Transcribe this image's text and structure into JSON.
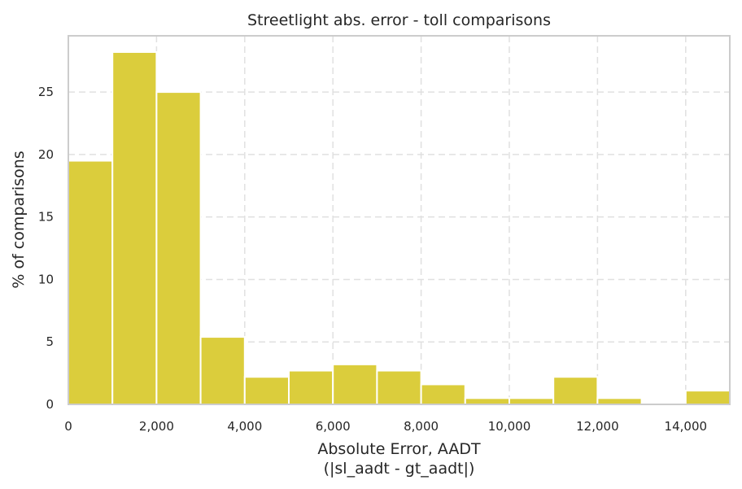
{
  "chart_data": {
    "type": "bar",
    "subtype": "histogram",
    "title": "Streetlight abs. error - toll comparisons",
    "xlabel": "Absolute Error, AADT",
    "xlabel_line2": "(|sl_aadt - gt_aadt|)",
    "ylabel": "% of comparisons",
    "bin_width": 1000,
    "bin_starts": [
      0,
      1000,
      2000,
      3000,
      4000,
      5000,
      6000,
      7000,
      8000,
      9000,
      10000,
      11000,
      12000,
      13000,
      14000
    ],
    "values": [
      19.5,
      28.2,
      25.0,
      5.4,
      2.2,
      2.7,
      3.2,
      2.7,
      1.6,
      0.5,
      0.5,
      2.2,
      0.5,
      0.0,
      1.1
    ],
    "xlim": [
      0,
      15000
    ],
    "ylim": [
      0,
      29.5
    ],
    "xticks": [
      0,
      2000,
      4000,
      6000,
      8000,
      10000,
      12000,
      14000
    ],
    "xtick_labels": [
      "0",
      "2,000",
      "4,000",
      "6,000",
      "8,000",
      "10,000",
      "12,000",
      "14,000"
    ],
    "yticks": [
      0,
      5,
      10,
      15,
      20,
      25
    ],
    "ytick_labels": [
      "0",
      "5",
      "10",
      "15",
      "20",
      "25"
    ],
    "bar_color": "#dbcd3c",
    "grid": true
  }
}
